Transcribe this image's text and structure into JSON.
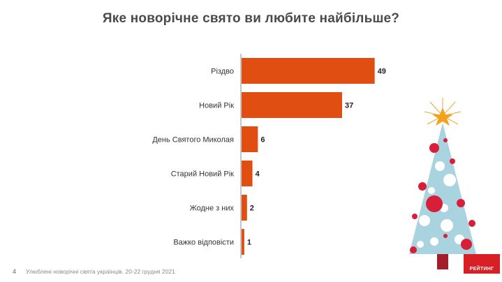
{
  "title": "Яке новорічне свято ви любите найбільше?",
  "chart_data": {
    "type": "bar",
    "orientation": "horizontal",
    "categories": [
      "Різдво",
      "Новий Рік",
      "День Святого Миколая",
      "Старий Новий Рік",
      "Жодне з них",
      "Важко відповісти"
    ],
    "values": [
      49,
      37,
      6,
      4,
      2,
      1
    ],
    "xlim": [
      0,
      55
    ],
    "grid": false,
    "bar_color": "#e04e12"
  },
  "footer": {
    "page_number": "4",
    "source": "Улюблені новорічні свята українців. 20-22 грудня 2021"
  },
  "logo": {
    "text": "РЕЙТИНГ"
  },
  "colors": {
    "accent": "#e04e12",
    "brand": "#d81f26",
    "tree": "#a9d3de"
  }
}
